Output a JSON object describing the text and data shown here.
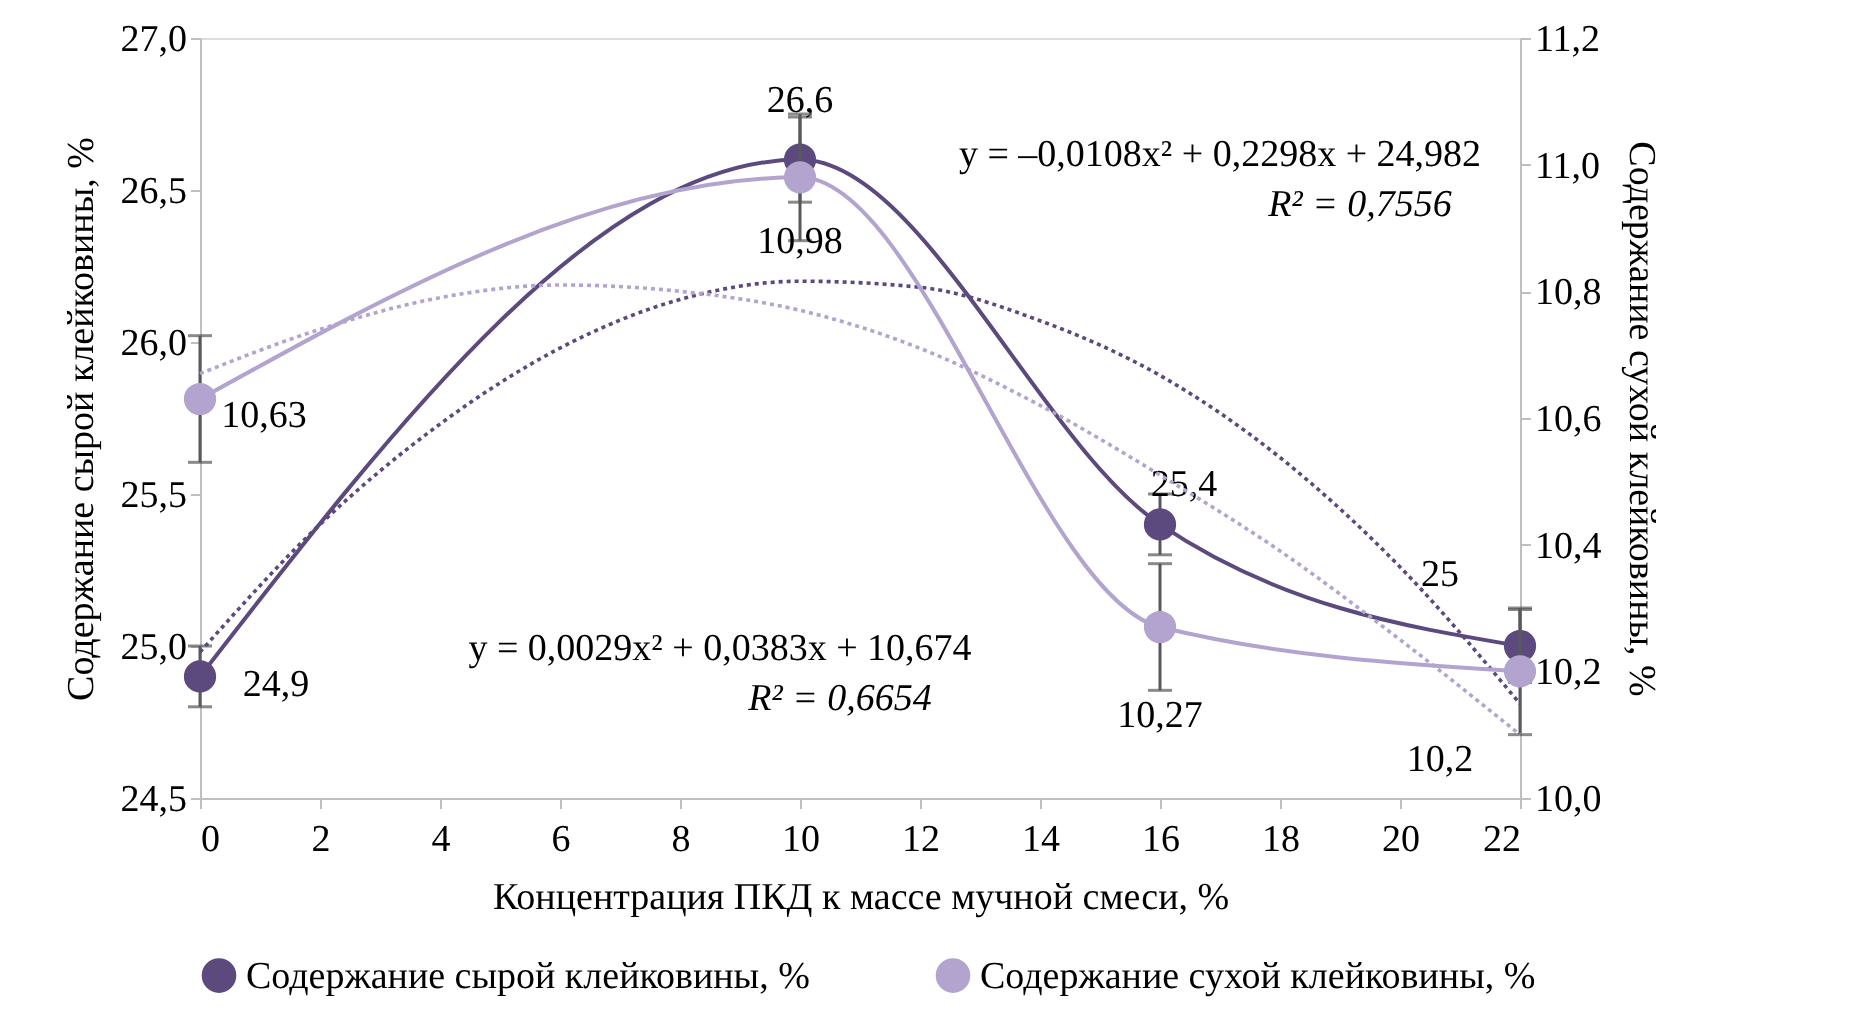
{
  "chart_data": {
    "type": "line",
    "xlabel": "Концентрация ПКД к массе мучной смеси, %",
    "ylabel": "Содержание сырой клейковины, %",
    "y2label": "Содержание сухой клейковины, %",
    "x": [
      0,
      10,
      16,
      22
    ],
    "xlim": [
      0,
      22
    ],
    "xticks": [
      0,
      2,
      4,
      6,
      8,
      10,
      12,
      14,
      16,
      18,
      20,
      22
    ],
    "ylim": [
      24.5,
      27.0
    ],
    "yticks": [
      {
        "value": 24.5,
        "label": "24,5"
      },
      {
        "value": 25.0,
        "label": "25,0"
      },
      {
        "value": 25.5,
        "label": "25,5"
      },
      {
        "value": 26.0,
        "label": "26,0"
      },
      {
        "value": 26.5,
        "label": "26,5"
      },
      {
        "value": 27.0,
        "label": "27,0"
      }
    ],
    "y2lim": [
      10.0,
      11.2
    ],
    "y2ticks": [
      {
        "value": 10.0,
        "label": "10,0"
      },
      {
        "value": 10.2,
        "label": "10,2"
      },
      {
        "value": 10.4,
        "label": "10,4"
      },
      {
        "value": 10.6,
        "label": "10,6"
      },
      {
        "value": 10.8,
        "label": "10,8"
      },
      {
        "value": 11.0,
        "label": "11,0"
      },
      {
        "value": 11.2,
        "label": "11,2"
      }
    ],
    "marker": "circle",
    "line_style": "solid",
    "grid": false,
    "legend": "bottom",
    "series": [
      {
        "name": "Содержание сырой клейковины, %",
        "color": "#5c4a7f",
        "values": [
          24.9,
          26.6,
          25.4,
          25
        ],
        "errors": [
          0.1,
          0.14,
          0.1,
          0.12
        ],
        "value_labels": [
          "24,9",
          "26,6",
          "25,4",
          "25"
        ]
      },
      {
        "name": "Содержание сухой клейковины, %",
        "color": "#b3a4cf",
        "axis": "y2",
        "values": [
          10.63,
          10.98,
          10.27,
          10.2
        ],
        "errors": [
          0.1,
          0.1,
          0.1,
          0.1
        ],
        "value_labels": [
          "10,63",
          "10,98",
          "10,27",
          "10,2"
        ]
      },
      {
        "type": "line",
        "color": "#5c4a7f",
        "line_style": "dotted",
        "marker": "none",
        "x": [
          0,
          2,
          4,
          6,
          8,
          10,
          12,
          14,
          16,
          18,
          20,
          22
        ],
        "values": [
          24.98,
          25.4,
          25.73,
          25.98,
          26.14,
          26.2,
          26.18,
          26.07,
          25.89,
          25.62,
          25.26,
          24.81
        ]
      },
      {
        "type": "line",
        "color": "#b3a4cf",
        "axis": "y2",
        "line_style": "dotted",
        "marker": "none",
        "x": [
          0,
          2,
          4,
          6,
          8,
          10,
          12,
          14,
          16,
          18,
          20,
          22
        ],
        "values": [
          10.67,
          10.74,
          10.79,
          10.81,
          10.8,
          10.77,
          10.71,
          10.62,
          10.51,
          10.39,
          10.25,
          10.1
        ]
      }
    ],
    "annotations": [
      "y = –0,0108x² + 0,2298x + 24,982",
      "R² = 0,7556",
      "y = 0,0029x² + 0,0383x + 10,674",
      "R² = 0,6654"
    ]
  }
}
